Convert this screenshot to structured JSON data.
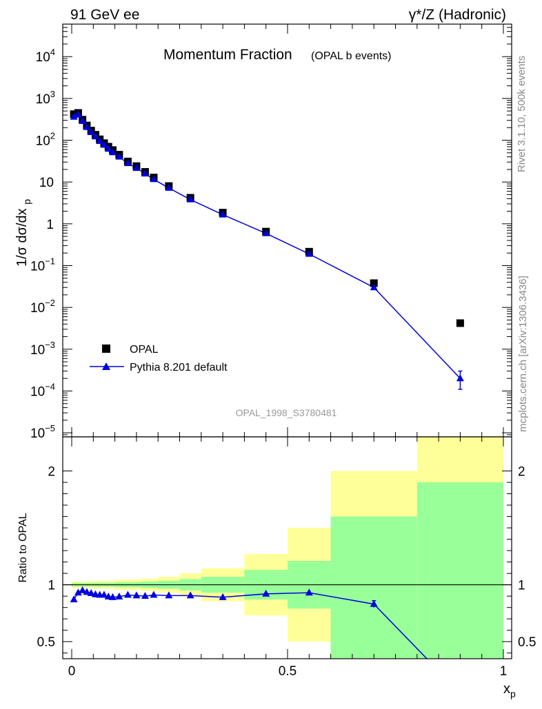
{
  "header": {
    "left": "91 GeV ee",
    "right": "γ*/Z (Hadronic)"
  },
  "side_labels": {
    "rivet": "Rivet 3.1.10,  500k events",
    "mcplots": "mcplots.cern.ch [arXiv:1306.3436]"
  },
  "chart_data": [
    {
      "type": "scatter",
      "title": "Momentum Fraction",
      "subtitle": "(OPAL b events)",
      "watermark": "OPAL_1998_S3780481",
      "ylabel": "1/σ dσ/dx_p",
      "yscale": "log",
      "xlim": [
        0,
        1
      ],
      "ylim": [
        8e-06,
        60000
      ],
      "y_ticks": [
        {
          "value": 1e-05,
          "base": "10",
          "exp": "−5"
        },
        {
          "value": 0.0001,
          "base": "10",
          "exp": "−4"
        },
        {
          "value": 0.001,
          "base": "10",
          "exp": "−3"
        },
        {
          "value": 0.01,
          "base": "10",
          "exp": "−2"
        },
        {
          "value": 0.1,
          "base": "10",
          "exp": "−1"
        },
        {
          "value": 1,
          "base": "1",
          "exp": ""
        },
        {
          "value": 10,
          "base": "10",
          "exp": ""
        },
        {
          "value": 100,
          "base": "10",
          "exp": "2"
        },
        {
          "value": 1000,
          "base": "10",
          "exp": "3"
        },
        {
          "value": 10000,
          "base": "10",
          "exp": "4"
        }
      ],
      "legend_position": "bottom-left",
      "series": [
        {
          "name": "OPAL",
          "marker": "square",
          "color": "#000000",
          "x": [
            0.005,
            0.015,
            0.025,
            0.035,
            0.045,
            0.055,
            0.065,
            0.075,
            0.085,
            0.095,
            0.11,
            0.13,
            0.15,
            0.17,
            0.19,
            0.225,
            0.275,
            0.35,
            0.45,
            0.55,
            0.7,
            0.9
          ],
          "y": [
            420,
            450,
            310,
            225,
            170,
            135,
            105,
            85,
            70,
            58,
            45,
            31,
            24,
            17.5,
            12.8,
            8.0,
            4.2,
            1.85,
            0.65,
            0.215,
            0.038,
            0.0042
          ]
        },
        {
          "name": "Pythia 8.201 default",
          "marker": "triangle",
          "color": "#0000dd",
          "x": [
            0.005,
            0.015,
            0.025,
            0.035,
            0.045,
            0.055,
            0.065,
            0.075,
            0.085,
            0.095,
            0.11,
            0.13,
            0.15,
            0.17,
            0.19,
            0.225,
            0.275,
            0.35,
            0.45,
            0.55,
            0.7,
            0.9
          ],
          "y": [
            360,
            410,
            285,
            205,
            155,
            122,
            95,
            77,
            62,
            51,
            40,
            28,
            21.5,
            15.8,
            11.6,
            7.2,
            3.8,
            1.65,
            0.59,
            0.19,
            0.03,
            0.0002
          ],
          "yerr_low": [
            0,
            0,
            0,
            0,
            0,
            0,
            0,
            0,
            0,
            0,
            0,
            0,
            0,
            0,
            0,
            0,
            0,
            0,
            0,
            0,
            0,
            9e-05
          ],
          "yerr_high": [
            0,
            0,
            0,
            0,
            0,
            0,
            0,
            0,
            0,
            0,
            0,
            0,
            0,
            0,
            0,
            0,
            0,
            0,
            0,
            0,
            0,
            0.0001
          ]
        }
      ]
    },
    {
      "type": "line",
      "ylabel": "Ratio to OPAL",
      "xlabel": "x_p",
      "xlim": [
        0,
        1
      ],
      "ylim": [
        0.35,
        2.3
      ],
      "x_ticks": [
        {
          "value": 0,
          "label": "0"
        },
        {
          "value": 0.5,
          "label": "0.5"
        },
        {
          "value": 1,
          "label": "1"
        }
      ],
      "y_ticks": [
        {
          "value": 0.5,
          "label": "0.5"
        },
        {
          "value": 1,
          "label": "1"
        },
        {
          "value": 2,
          "label": "2"
        }
      ],
      "reference_line": 1,
      "bands": [
        {
          "x0": 0.0,
          "x1": 0.05,
          "yellow": [
            0.97,
            1.03
          ],
          "green": [
            0.985,
            1.015
          ]
        },
        {
          "x0": 0.05,
          "x1": 0.1,
          "yellow": [
            0.965,
            1.035
          ],
          "green": [
            0.983,
            1.017
          ]
        },
        {
          "x0": 0.1,
          "x1": 0.16,
          "yellow": [
            0.955,
            1.045
          ],
          "green": [
            0.978,
            1.022
          ]
        },
        {
          "x0": 0.16,
          "x1": 0.2,
          "yellow": [
            0.945,
            1.055
          ],
          "green": [
            0.972,
            1.028
          ]
        },
        {
          "x0": 0.2,
          "x1": 0.25,
          "yellow": [
            0.93,
            1.07
          ],
          "green": [
            0.965,
            1.035
          ]
        },
        {
          "x0": 0.25,
          "x1": 0.3,
          "yellow": [
            0.9,
            1.1
          ],
          "green": [
            0.95,
            1.05
          ]
        },
        {
          "x0": 0.3,
          "x1": 0.4,
          "yellow": [
            0.855,
            1.145
          ],
          "green": [
            0.93,
            1.07
          ]
        },
        {
          "x0": 0.4,
          "x1": 0.5,
          "yellow": [
            0.73,
            1.27
          ],
          "green": [
            0.87,
            1.13
          ]
        },
        {
          "x0": 0.5,
          "x1": 0.6,
          "yellow": [
            0.5,
            1.5
          ],
          "green": [
            0.79,
            1.21
          ]
        },
        {
          "x0": 0.6,
          "x1": 0.8,
          "yellow": [
            0.0,
            2.0
          ],
          "green": [
            0.0,
            1.6
          ]
        },
        {
          "x0": 0.8,
          "x1": 1.0,
          "yellow": [
            0.0,
            2.7
          ],
          "green": [
            0.0,
            1.9
          ]
        }
      ],
      "series": [
        {
          "name": "Pythia 8.201 default",
          "color": "#0000dd",
          "x": [
            0.005,
            0.015,
            0.025,
            0.035,
            0.045,
            0.055,
            0.065,
            0.075,
            0.085,
            0.095,
            0.11,
            0.13,
            0.15,
            0.17,
            0.19,
            0.225,
            0.275,
            0.35,
            0.45,
            0.55,
            0.7,
            0.9
          ],
          "y": [
            0.87,
            0.93,
            0.95,
            0.935,
            0.925,
            0.915,
            0.91,
            0.91,
            0.895,
            0.89,
            0.895,
            0.91,
            0.905,
            0.9,
            0.91,
            0.905,
            0.905,
            0.89,
            0.92,
            0.93,
            0.83,
            0.048
          ],
          "yerr": [
            0,
            0,
            0,
            0,
            0,
            0,
            0,
            0,
            0,
            0,
            0,
            0,
            0,
            0,
            0,
            0,
            0,
            0,
            0,
            0,
            0.03,
            0
          ]
        }
      ]
    }
  ]
}
